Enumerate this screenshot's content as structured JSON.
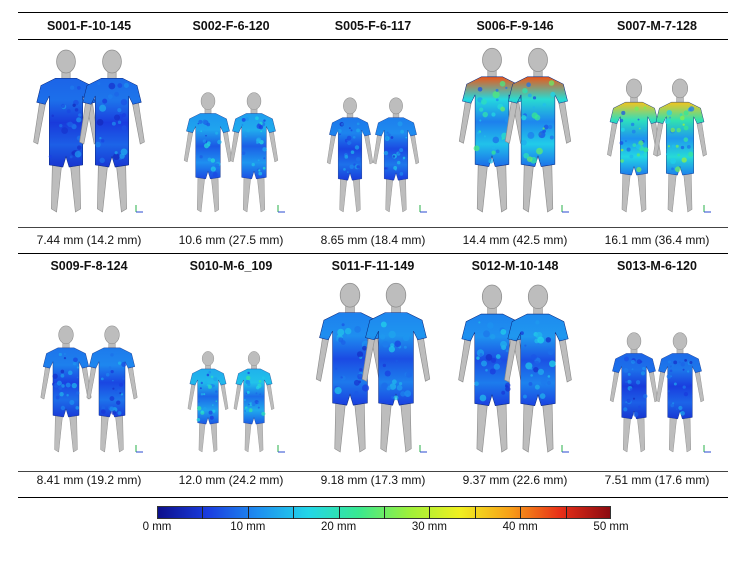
{
  "colormap": {
    "stops": [
      "#0c0f8c",
      "#1a3de0",
      "#1e8ff0",
      "#22d6e8",
      "#38e890",
      "#9ef03a",
      "#f0f020",
      "#f7a018",
      "#e83018",
      "#8c0a10"
    ],
    "tick_labels": [
      "0 mm",
      "10 mm",
      "20 mm",
      "30 mm",
      "40 mm",
      "50 mm"
    ],
    "minor_ticks": 10
  },
  "rows": [
    {
      "panels": [
        {
          "title": "S001-F-10-145",
          "caption": "7.44 mm (14.2 mm)",
          "mean": 7.44,
          "max": 14.2,
          "height_cm": 145
        },
        {
          "title": "S002-F-6-120",
          "caption": "10.6 mm (27.5 mm)",
          "mean": 10.6,
          "max": 27.5,
          "height_cm": 120
        },
        {
          "title": "S005-F-6-117",
          "caption": "8.65 mm (18.4 mm)",
          "mean": 8.65,
          "max": 18.4,
          "height_cm": 117
        },
        {
          "title": "S006-F-9-146",
          "caption": "14.4 mm (42.5 mm)",
          "mean": 14.4,
          "max": 42.5,
          "height_cm": 146
        },
        {
          "title": "S007-M-7-128",
          "caption": "16.1 mm (36.4 mm)",
          "mean": 16.1,
          "max": 36.4,
          "height_cm": 128
        }
      ]
    },
    {
      "panels": [
        {
          "title": "S009-F-8-124",
          "caption": "8.41 mm (19.2 mm)",
          "mean": 8.41,
          "max": 19.2,
          "height_cm": 124
        },
        {
          "title": "S010-M-6_109",
          "caption": "12.0 mm (24.2 mm)",
          "mean": 12.0,
          "max": 24.2,
          "height_cm": 109
        },
        {
          "title": "S011-F-11-149",
          "caption": "9.18 mm (17.3 mm)",
          "mean": 9.18,
          "max": 17.3,
          "height_cm": 149
        },
        {
          "title": "S012-M-10-148",
          "caption": "9.37 mm (22.6 mm)",
          "mean": 9.37,
          "max": 22.6,
          "height_cm": 148
        },
        {
          "title": "S013-M-6-120",
          "caption": "7.51 mm (17.6 mm)",
          "mean": 7.51,
          "max": 17.6,
          "height_cm": 120
        }
      ]
    }
  ]
}
